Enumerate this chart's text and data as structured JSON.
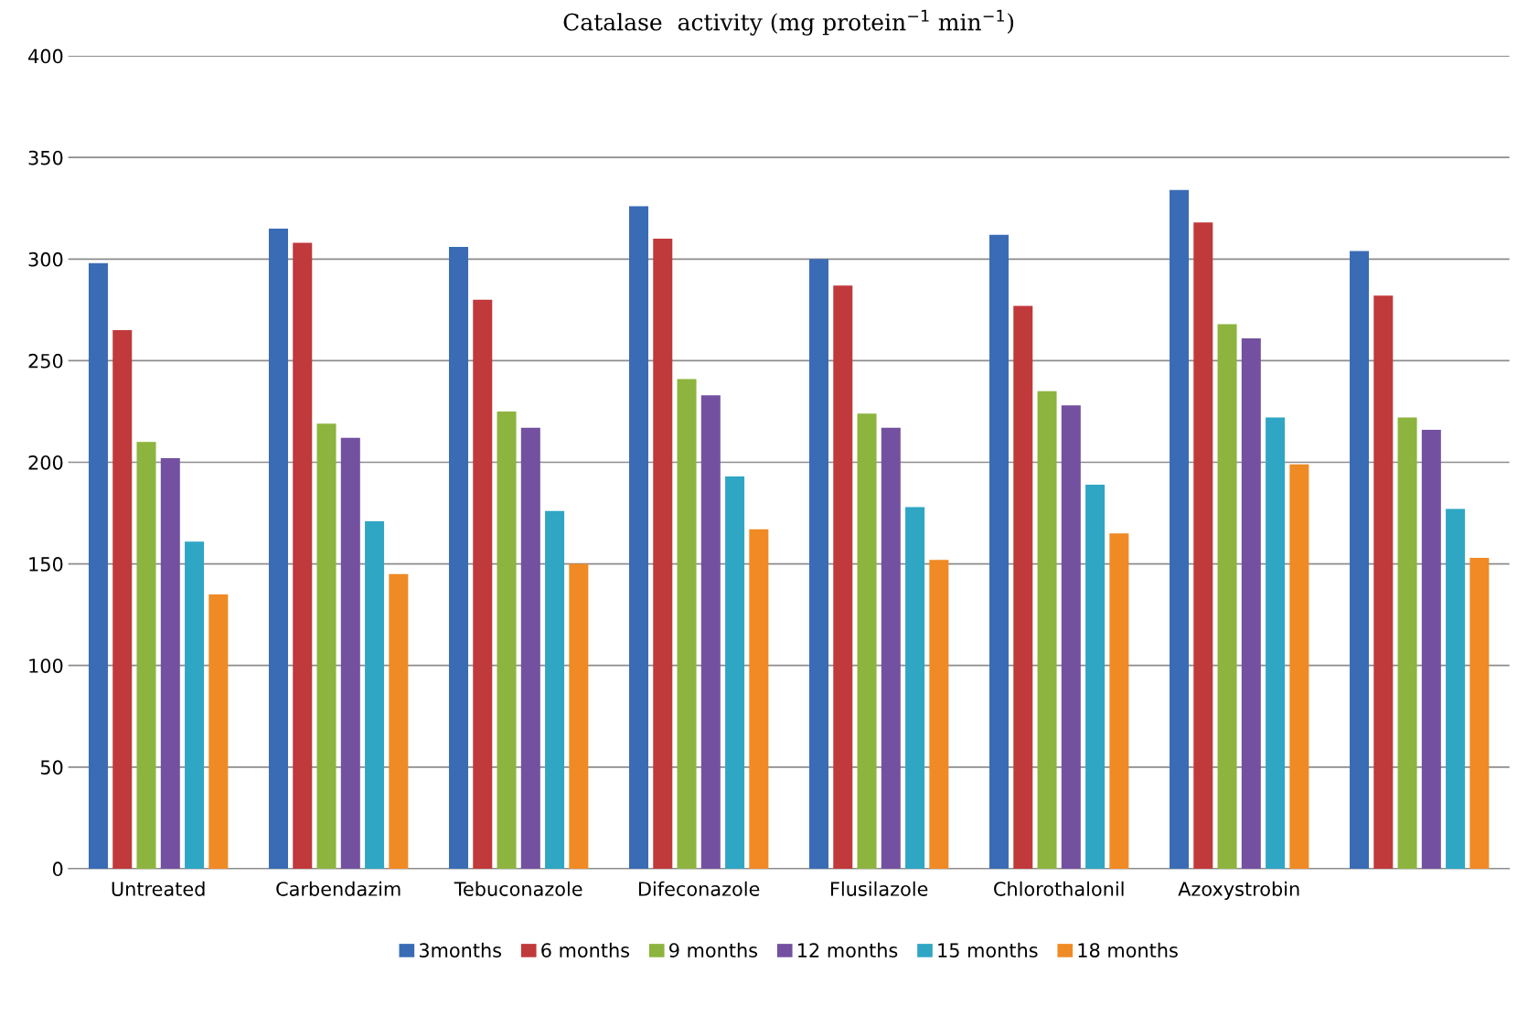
{
  "chart_data": {
    "type": "bar",
    "title": "Catalase  activity (mg protein$^{−1}$ min$^{−1}$)",
    "categories": [
      "Untreated",
      "Carbendazim",
      "Tebuconazole",
      "Difeconazole",
      "Flusilazole",
      "Chlorothalonil",
      "Azoxystrobin",
      null
    ],
    "series": [
      {
        "name": "3months",
        "color": "#3a6cb5",
        "values": [
          298,
          315,
          306,
          326,
          300,
          312,
          334,
          304
        ]
      },
      {
        "name": "6 months",
        "color": "#c0393b",
        "values": [
          265,
          308,
          280,
          310,
          287,
          277,
          318,
          282
        ]
      },
      {
        "name": "9 months",
        "color": "#8db43e",
        "values": [
          210,
          219,
          225,
          241,
          224,
          235,
          268,
          222
        ]
      },
      {
        "name": "12 months",
        "color": "#7351a0",
        "values": [
          202,
          212,
          217,
          233,
          217,
          228,
          261,
          216
        ]
      },
      {
        "name": "15 months",
        "color": "#2fa6c4",
        "values": [
          161,
          171,
          176,
          193,
          178,
          189,
          222,
          177
        ]
      },
      {
        "name": "18 months",
        "color": "#f08a24",
        "values": [
          135,
          145,
          150,
          167,
          152,
          165,
          199,
          153
        ]
      }
    ],
    "ylim": [
      0,
      400
    ],
    "yticks": [
      0,
      50,
      100,
      150,
      200,
      250,
      300,
      350,
      400
    ],
    "grid": "y",
    "legend": "bottom"
  }
}
